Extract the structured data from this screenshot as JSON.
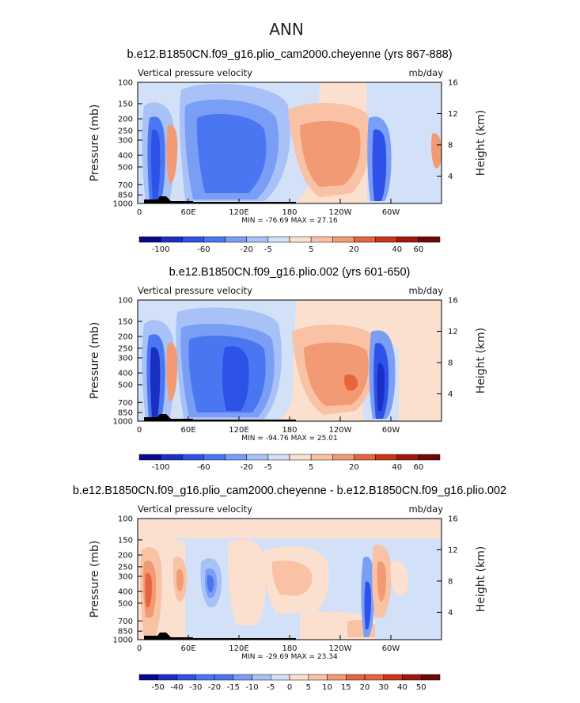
{
  "figure_title": "ANN",
  "colors": {
    "diverging_13": [
      "#08088f",
      "#1a2fc4",
      "#2e52e8",
      "#4a76f2",
      "#7a9ef5",
      "#a8c2f7",
      "#d2e0f8",
      "#fbe0d0",
      "#f9c2a5",
      "#f29a73",
      "#e6653f",
      "#cc3414",
      "#a0170e",
      "#6b0a06"
    ]
  },
  "chart_data": [
    {
      "type": "heatmap",
      "title": "b.e12.B1850CN.f09_g16.plio_cam2000.cheyenne (yrs 867-888)",
      "variable_label": "Vertical pressure velocity",
      "units": "mb/day",
      "xlabel": "",
      "ylabel": "Pressure (mb)",
      "ylabel_right": "Height (km)",
      "x_ticks": [
        "0",
        "60E",
        "120E",
        "180",
        "120W",
        "60W"
      ],
      "y_ticks": [
        "100",
        "150",
        "200",
        "250",
        "300",
        "400",
        "500",
        "700",
        "850",
        "1000"
      ],
      "y_ticks_right": [
        "16",
        "12",
        "8",
        "4"
      ],
      "min_max_text": "MIN = -76.69   MAX =  27.16",
      "colorbar_labels": [
        "-100",
        "-60",
        "-20",
        "-5",
        "5",
        "20",
        "40",
        "60"
      ],
      "features": [
        {
          "lon": 15,
          "p_top": 150,
          "p_bottom": 900,
          "value": -40
        },
        {
          "lon": 28,
          "p_top": 200,
          "p_bottom": 850,
          "value": 20
        },
        {
          "lon": 95,
          "p_top": 140,
          "p_bottom": 950,
          "value": -35
        },
        {
          "lon": 150,
          "p_top": 160,
          "p_bottom": 900,
          "value": -30
        },
        {
          "lon": 215,
          "p_top": 200,
          "p_bottom": 750,
          "value": 15
        },
        {
          "lon": 292,
          "p_top": 150,
          "p_bottom": 950,
          "value": -45
        },
        {
          "lon": 350,
          "p_top": 250,
          "p_bottom": 550,
          "value": 10
        }
      ]
    },
    {
      "type": "heatmap",
      "title": "b.e12.B1850CN.f09_g16.plio.002 (yrs 601-650)",
      "variable_label": "Vertical pressure velocity",
      "units": "mb/day",
      "xlabel": "",
      "ylabel": "Pressure (mb)",
      "ylabel_right": "Height (km)",
      "x_ticks": [
        "0",
        "60E",
        "120E",
        "180",
        "120W",
        "60W"
      ],
      "y_ticks": [
        "100",
        "150",
        "200",
        "250",
        "300",
        "400",
        "500",
        "700",
        "850",
        "1000"
      ],
      "y_ticks_right": [
        "16",
        "12",
        "8",
        "4"
      ],
      "min_max_text": "MIN = -94.76   MAX =  25.01",
      "colorbar_labels": [
        "-100",
        "-60",
        "-20",
        "-5",
        "5",
        "20",
        "40",
        "60"
      ],
      "features": [
        {
          "lon": 15,
          "p_top": 150,
          "p_bottom": 900,
          "value": -45
        },
        {
          "lon": 28,
          "p_top": 200,
          "p_bottom": 850,
          "value": 20
        },
        {
          "lon": 90,
          "p_top": 150,
          "p_bottom": 900,
          "value": -30
        },
        {
          "lon": 140,
          "p_top": 150,
          "p_bottom": 950,
          "value": -40
        },
        {
          "lon": 225,
          "p_top": 200,
          "p_bottom": 750,
          "value": 18
        },
        {
          "lon": 290,
          "p_top": 150,
          "p_bottom": 950,
          "value": -50
        },
        {
          "lon": 345,
          "p_top": 250,
          "p_bottom": 550,
          "value": 8
        }
      ]
    },
    {
      "type": "heatmap",
      "title": "b.e12.B1850CN.f09_g16.plio_cam2000.cheyenne - b.e12.B1850CN.f09_g16.plio.002",
      "variable_label": "Vertical pressure velocity",
      "units": "mb/day",
      "xlabel": "",
      "ylabel": "Pressure (mb)",
      "ylabel_right": "Height (km)",
      "x_ticks": [
        "0",
        "60E",
        "120E",
        "180",
        "120W",
        "60W"
      ],
      "y_ticks": [
        "100",
        "150",
        "200",
        "250",
        "300",
        "400",
        "500",
        "700",
        "850",
        "1000"
      ],
      "y_ticks_right": [
        "16",
        "12",
        "8",
        "4"
      ],
      "min_max_text": "MIN = -29.69   MAX =  23.34",
      "colorbar_labels": [
        "-50",
        "-40",
        "-30",
        "-20",
        "-15",
        "-10",
        "-5",
        "0",
        "5",
        "10",
        "15",
        "20",
        "30",
        "40",
        "50"
      ],
      "features": [
        {
          "lon": 12,
          "p_top": 250,
          "p_bottom": 700,
          "value": 15
        },
        {
          "lon": 50,
          "p_top": 250,
          "p_bottom": 600,
          "value": 12
        },
        {
          "lon": 88,
          "p_top": 250,
          "p_bottom": 500,
          "value": -15
        },
        {
          "lon": 160,
          "p_top": 300,
          "p_bottom": 700,
          "value": 5
        },
        {
          "lon": 287,
          "p_top": 250,
          "p_bottom": 900,
          "value": -18
        },
        {
          "lon": 295,
          "p_top": 250,
          "p_bottom": 600,
          "value": 15
        }
      ]
    }
  ]
}
